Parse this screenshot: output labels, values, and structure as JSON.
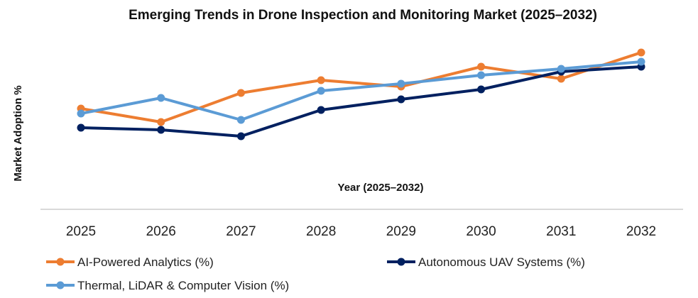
{
  "chart_data": {
    "type": "line",
    "title": "Emerging Trends in Drone Inspection and Monitoring Market (2025–2032)",
    "xlabel": "Year (2025–2032)",
    "ylabel": "Market Adoption %",
    "categories": [
      "2025",
      "2026",
      "2027",
      "2028",
      "2029",
      "2030",
      "2031",
      "2032"
    ],
    "ylim": [
      0,
      90
    ],
    "grid": false,
    "legend_position": "bottom",
    "series": [
      {
        "name": "AI-Powered Analytics (%)",
        "color": "#ED7D31",
        "values": [
          56.8,
          49.2,
          65.6,
          72.8,
          69.2,
          80.4,
          73.6,
          88.4
        ]
      },
      {
        "name": "Autonomous UAV Systems (%)",
        "color": "#002060",
        "values": [
          46.0,
          44.8,
          41.2,
          56.0,
          62.0,
          67.6,
          77.6,
          80.4
        ]
      },
      {
        "name": "Thermal, LiDAR & Computer Vision (%)",
        "color": "#5B9BD5",
        "values": [
          54.0,
          62.8,
          50.4,
          66.8,
          70.8,
          75.6,
          79.2,
          83.2
        ]
      }
    ]
  }
}
